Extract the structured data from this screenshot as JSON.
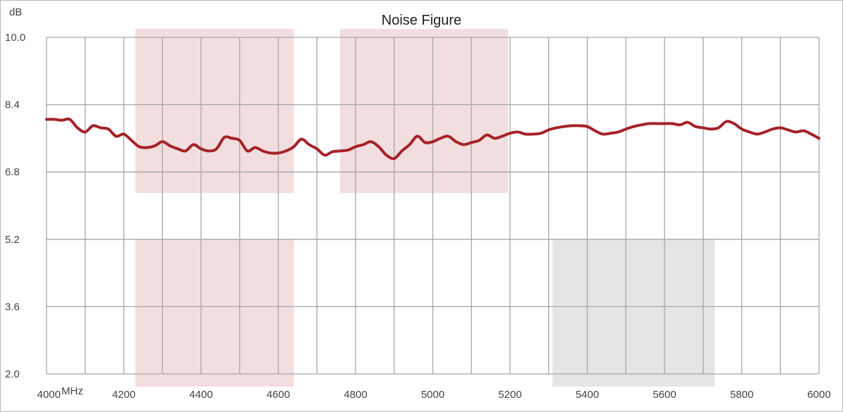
{
  "chart_data": {
    "type": "line",
    "title": "Noise Figure",
    "y_unit": "dB",
    "x_unit": "MHz",
    "xlim": [
      4000,
      6000
    ],
    "ylim": [
      2.0,
      10.0
    ],
    "x_ticks": [
      "4000",
      "4200",
      "4400",
      "4600",
      "4800",
      "5000",
      "5200",
      "5400",
      "5600",
      "5800",
      "6000"
    ],
    "y_ticks": [
      "2.0",
      "3.6",
      "5.2",
      "6.8",
      "8.4",
      "10.0"
    ],
    "grid": true,
    "colors": {
      "line": "#a52228",
      "band_pink": "#f2dede",
      "band_gray": "#e5e5e5",
      "grid": "#a6a6a6"
    },
    "shaded_regions": [
      {
        "x": [
          4230,
          4640
        ],
        "y": [
          6.3,
          10.2
        ],
        "color": "pink"
      },
      {
        "x": [
          4760,
          5195
        ],
        "y": [
          6.3,
          10.2
        ],
        "color": "pink"
      },
      {
        "x": [
          4230,
          4640
        ],
        "y": [
          1.7,
          5.2
        ],
        "color": "pink"
      },
      {
        "x": [
          5310,
          5730
        ],
        "y": [
          1.7,
          5.2
        ],
        "color": "gray"
      }
    ],
    "series": [
      {
        "x": [
          4000,
          4020,
          4040,
          4060,
          4080,
          4100,
          4120,
          4140,
          4160,
          4180,
          4200,
          4220,
          4240,
          4260,
          4280,
          4300,
          4320,
          4340,
          4360,
          4380,
          4400,
          4420,
          4440,
          4460,
          4480,
          4500,
          4520,
          4540,
          4560,
          4580,
          4600,
          4620,
          4640,
          4660,
          4680,
          4700,
          4720,
          4740,
          4760,
          4780,
          4800,
          4820,
          4840,
          4860,
          4880,
          4900,
          4920,
          4940,
          4960,
          4980,
          5000,
          5020,
          5040,
          5060,
          5080,
          5100,
          5120,
          5140,
          5160,
          5180,
          5200,
          5220,
          5240,
          5260,
          5280,
          5300,
          5320,
          5340,
          5360,
          5380,
          5400,
          5420,
          5440,
          5460,
          5480,
          5500,
          5520,
          5540,
          5560,
          5580,
          5600,
          5620,
          5640,
          5660,
          5680,
          5700,
          5720,
          5740,
          5760,
          5780,
          5800,
          5820,
          5840,
          5860,
          5880,
          5900,
          5920,
          5940,
          5960,
          5980,
          6000
        ],
        "y": [
          8.05,
          8.05,
          8.03,
          8.05,
          7.85,
          7.75,
          7.9,
          7.85,
          7.82,
          7.65,
          7.7,
          7.55,
          7.4,
          7.38,
          7.42,
          7.52,
          7.42,
          7.35,
          7.3,
          7.45,
          7.35,
          7.3,
          7.35,
          7.62,
          7.6,
          7.55,
          7.3,
          7.38,
          7.3,
          7.25,
          7.25,
          7.3,
          7.4,
          7.58,
          7.45,
          7.35,
          7.2,
          7.28,
          7.3,
          7.32,
          7.4,
          7.45,
          7.52,
          7.4,
          7.2,
          7.12,
          7.3,
          7.45,
          7.65,
          7.5,
          7.52,
          7.6,
          7.65,
          7.52,
          7.45,
          7.5,
          7.55,
          7.68,
          7.6,
          7.65,
          7.72,
          7.75,
          7.7,
          7.7,
          7.72,
          7.8,
          7.85,
          7.88,
          7.9,
          7.9,
          7.88,
          7.78,
          7.7,
          7.72,
          7.75,
          7.82,
          7.88,
          7.92,
          7.95,
          7.95,
          7.95,
          7.95,
          7.92,
          7.98,
          7.88,
          7.85,
          7.82,
          7.85,
          8.0,
          7.95,
          7.82,
          7.75,
          7.7,
          7.75,
          7.82,
          7.85,
          7.8,
          7.75,
          7.78,
          7.7,
          7.6
        ]
      }
    ]
  }
}
